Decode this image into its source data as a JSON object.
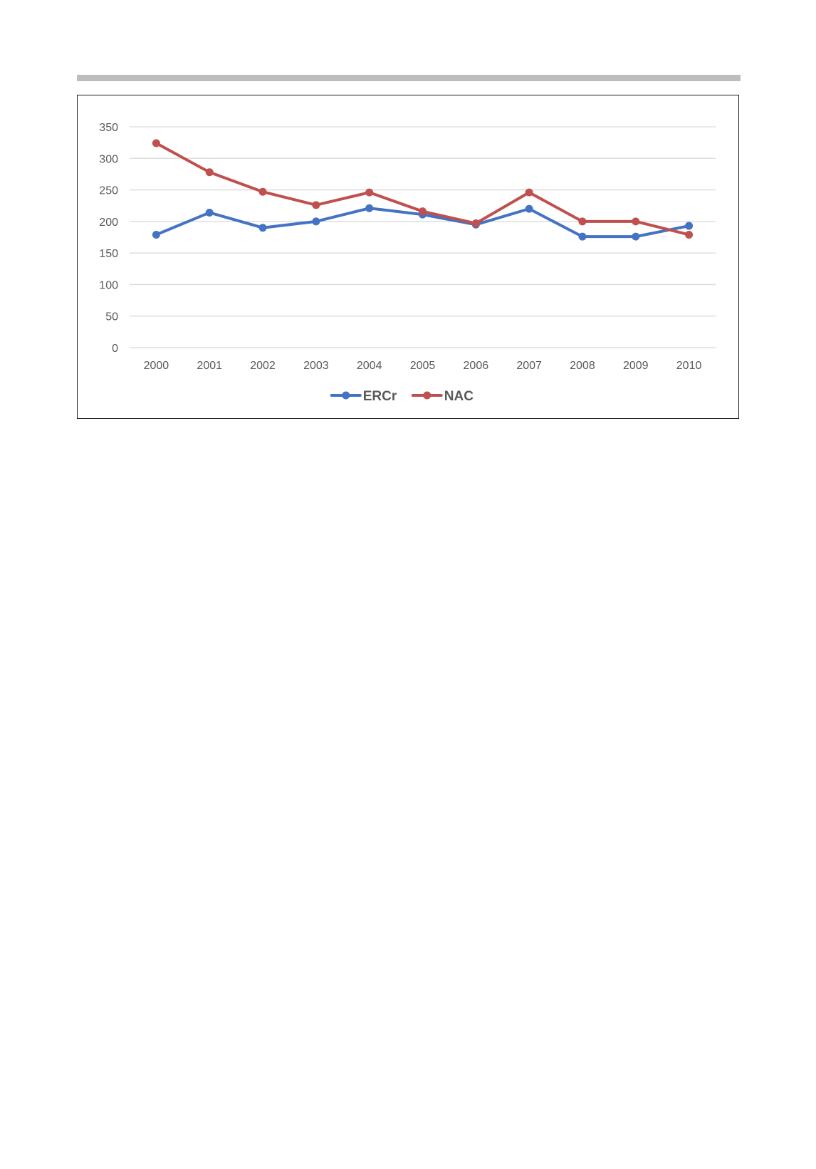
{
  "chart_data": {
    "type": "line",
    "title": "",
    "xlabel": "",
    "ylabel": "",
    "x": [
      "2000",
      "2001",
      "2002",
      "2003",
      "2004",
      "2005",
      "2006",
      "2007",
      "2008",
      "2009",
      "2010"
    ],
    "ylim": [
      0,
      350
    ],
    "yticks": [
      0,
      50,
      100,
      150,
      200,
      250,
      300,
      350
    ],
    "grid": true,
    "legend_position": "bottom",
    "series": [
      {
        "name": "ERCr",
        "color": "#4472C4",
        "values": [
          179,
          214,
          190,
          200,
          221,
          211,
          195,
          220,
          176,
          176,
          193
        ]
      },
      {
        "name": "NAC",
        "color": "#C0504D",
        "values": [
          324,
          278,
          247,
          226,
          246,
          216,
          197,
          246,
          200,
          200,
          179
        ]
      }
    ]
  }
}
